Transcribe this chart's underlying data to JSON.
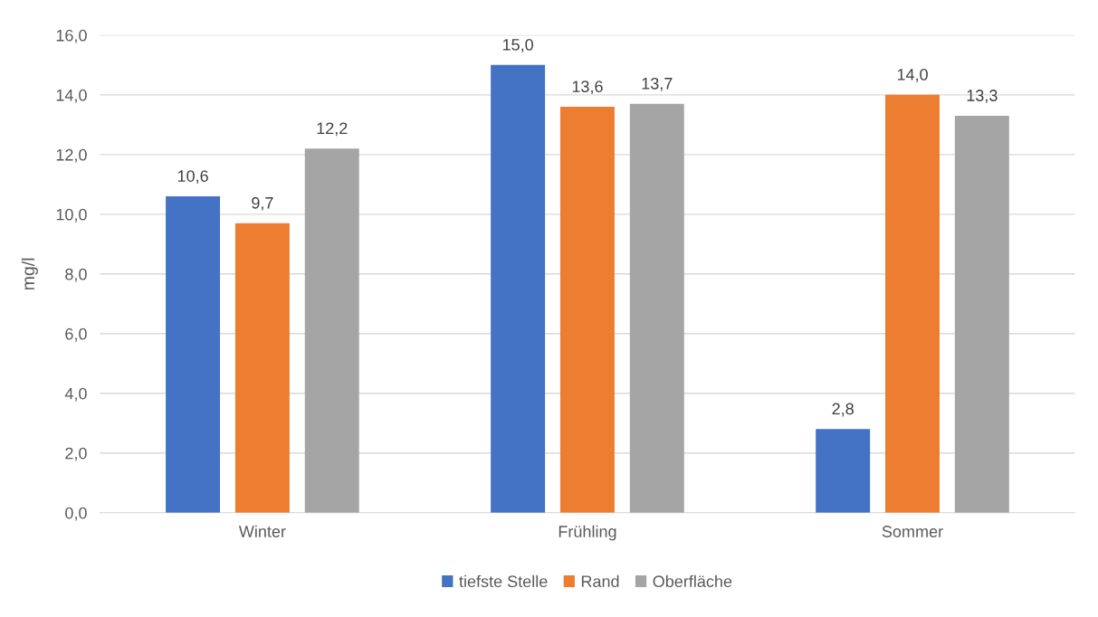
{
  "chart_data": {
    "type": "bar",
    "ylabel": "mg/l",
    "categories": [
      "Winter",
      "Frühling",
      "Sommer"
    ],
    "series": [
      {
        "name": "tiefste Stelle",
        "color": "#4472c4",
        "values": [
          10.6,
          15.0,
          2.8
        ],
        "value_labels": [
          "10,6",
          "15,0",
          "2,8"
        ]
      },
      {
        "name": "Rand",
        "color": "#ed7d31",
        "values": [
          9.7,
          13.6,
          14.0
        ],
        "value_labels": [
          "9,7",
          "13,6",
          "14,0"
        ]
      },
      {
        "name": "Oberfläche",
        "color": "#a5a5a5",
        "values": [
          12.2,
          13.7,
          13.3
        ],
        "value_labels": [
          "12,2",
          "13,7",
          "13,3"
        ]
      }
    ],
    "ylim": [
      0,
      16
    ],
    "yticks": [
      {
        "value": 0,
        "label": "0,0"
      },
      {
        "value": 2,
        "label": "2,0"
      },
      {
        "value": 4,
        "label": "4,0"
      },
      {
        "value": 6,
        "label": "6,0"
      },
      {
        "value": 8,
        "label": "8,0"
      },
      {
        "value": 10,
        "label": "10,0"
      },
      {
        "value": 12,
        "label": "12,0"
      },
      {
        "value": 14,
        "label": "14,0"
      },
      {
        "value": 16,
        "label": "16,0"
      }
    ],
    "grid": "y",
    "legend": "bottom"
  }
}
